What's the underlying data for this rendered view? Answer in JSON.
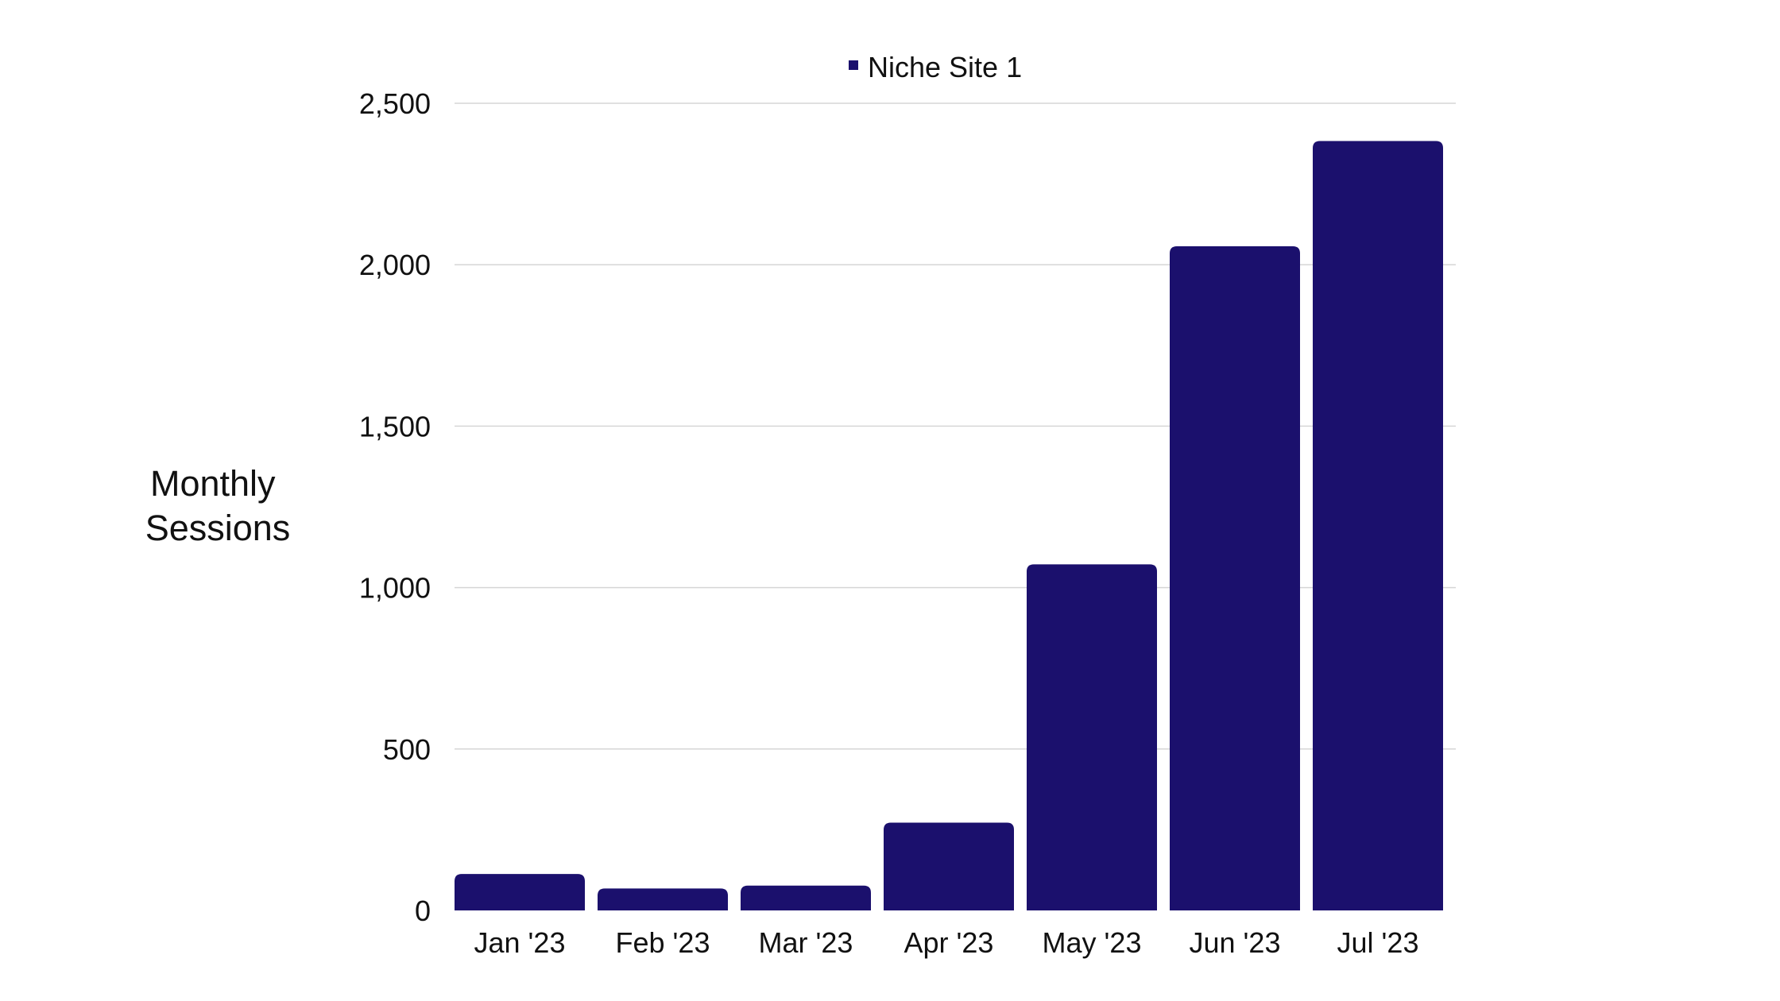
{
  "chart_data": {
    "type": "bar",
    "title": "",
    "xlabel": "",
    "ylabel_lines": [
      "Monthly",
      "Sessions"
    ],
    "ylim": [
      0,
      2500
    ],
    "yticks": [
      0,
      500,
      1000,
      1500,
      2000,
      2500
    ],
    "ytick_labels": [
      "0",
      "500",
      "1,000",
      "1,500",
      "2,000",
      "2,500"
    ],
    "grid": true,
    "legend_position": "top",
    "categories": [
      "Jan '23",
      "Feb '23",
      "Mar '23",
      "Apr '23",
      "May '23",
      "Jun '23",
      "Jul '23"
    ],
    "series": [
      {
        "name": "Niche Site 1",
        "color": "#1b106d",
        "values": [
          113,
          68,
          77,
          272,
          1072,
          2057,
          2383
        ]
      }
    ]
  }
}
